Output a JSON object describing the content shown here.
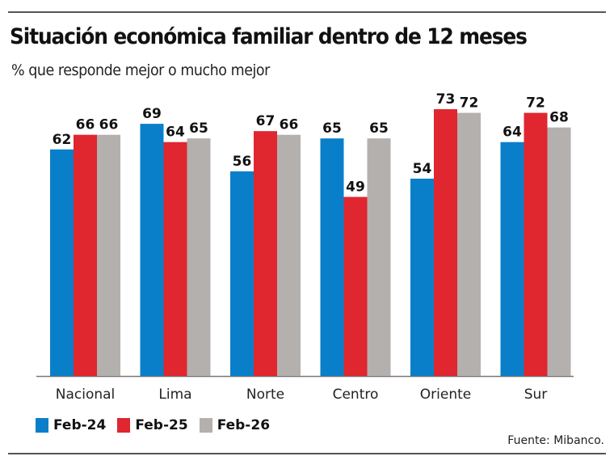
{
  "header": {
    "title": "Situación económica familiar dentro de 12 meses",
    "subtitle": "% que responde mejor o mucho mejor"
  },
  "footer": {
    "source": "Fuente: Mibanco."
  },
  "chart_data": {
    "type": "bar",
    "title": "Situación económica familiar dentro de 12 meses",
    "subtitle": "% que responde mejor o mucho mejor",
    "xlabel": "",
    "ylabel": "",
    "categories": [
      "Nacional",
      "Lima",
      "Norte",
      "Centro",
      "Oriente",
      "Sur"
    ],
    "series": [
      {
        "name": "Feb-24",
        "color": "#0a7fc9",
        "values": [
          62,
          69,
          56,
          65,
          54,
          64
        ]
      },
      {
        "name": "Feb-25",
        "color": "#e0262f",
        "values": [
          66,
          64,
          67,
          49,
          73,
          72
        ]
      },
      {
        "name": "Feb-26",
        "color": "#b3b0ad",
        "values": [
          66,
          65,
          66,
          65,
          72,
          68
        ]
      }
    ],
    "ylim": [
      0,
      75
    ],
    "grid": false,
    "data_labels": true,
    "legend": "bottom-left",
    "source": "Fuente: Mibanco."
  }
}
